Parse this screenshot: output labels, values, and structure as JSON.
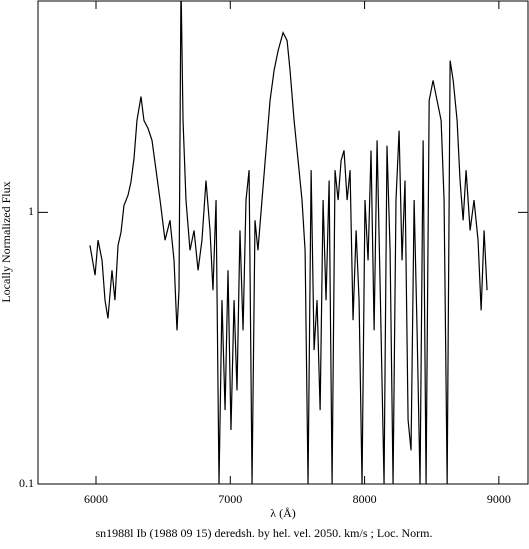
{
  "chart_data": {
    "type": "line",
    "title": "sn1988l Ib (1988 09 15) deredsh. by hel. vel.  2050. km/s ;  Loc. Norm.",
    "xlabel": "λ (Å)",
    "ylabel": "Locally Normalized Flux",
    "color": "#000000",
    "ylog": true,
    "xlim": [
      5568,
      9217
    ],
    "xticks": [
      6000,
      7000,
      8000,
      9000
    ],
    "ylim": [
      0.1,
      6
    ],
    "yticks": [
      0.1,
      1
    ],
    "x": [
      5955,
      5993,
      6015,
      6045,
      6067,
      6089,
      6119,
      6141,
      6164,
      6186,
      6208,
      6238,
      6260,
      6283,
      6305,
      6335,
      6357,
      6387,
      6417,
      6447,
      6477,
      6514,
      6551,
      6581,
      6603,
      6618,
      6633,
      6648,
      6670,
      6700,
      6730,
      6760,
      6789,
      6819,
      6849,
      6871,
      6894,
      6916,
      6938,
      6961,
      6983,
      7005,
      7028,
      7050,
      7072,
      7095,
      7117,
      7140,
      7162,
      7184,
      7206,
      7236,
      7266,
      7296,
      7326,
      7356,
      7393,
      7423,
      7445,
      7475,
      7505,
      7534,
      7557,
      7579,
      7602,
      7624,
      7646,
      7669,
      7691,
      7713,
      7736,
      7758,
      7780,
      7803,
      7825,
      7847,
      7870,
      7892,
      7914,
      7937,
      7959,
      7981,
      8003,
      8026,
      8048,
      8071,
      8093,
      8115,
      8145,
      8167,
      8190,
      8212,
      8234,
      8257,
      8279,
      8301,
      8324,
      8346,
      8369,
      8391,
      8413,
      8436,
      8458,
      8481,
      8510,
      8540,
      8570,
      8592,
      8615,
      8637,
      8660,
      8689,
      8711,
      8734,
      8756,
      8786,
      8815,
      8845,
      8868,
      8890,
      8912
    ],
    "values": [
      0.756,
      0.587,
      0.79,
      0.666,
      0.475,
      0.407,
      0.612,
      0.475,
      0.756,
      0.844,
      1.06,
      1.155,
      1.29,
      1.58,
      2.18,
      2.67,
      2.18,
      2.04,
      1.84,
      1.43,
      1.11,
      0.79,
      0.935,
      0.666,
      0.368,
      0.517,
      7,
      2.18,
      1.11,
      0.725,
      0.858,
      0.612,
      0.79,
      1.31,
      0.858,
      0.517,
      1.11,
      0.1,
      0.475,
      0.187,
      0.612,
      0.158,
      0.475,
      0.221,
      0.858,
      0.368,
      1.11,
      1.43,
      0.1,
      0.935,
      0.725,
      1.11,
      1.69,
      2.58,
      3.33,
      3.94,
      4.59,
      4.29,
      3.33,
      2.18,
      1.55,
      1.11,
      0.725,
      0.1,
      1.43,
      0.311,
      0.475,
      0.187,
      1.11,
      0.475,
      1.31,
      0.1,
      1.43,
      1.11,
      1.55,
      1.69,
      1.11,
      1.43,
      0.401,
      0.858,
      0.475,
      0.1,
      1.11,
      0.666,
      1.69,
      0.368,
      1.84,
      0.562,
      0.1,
      1.76,
      0.725,
      0.1,
      1.11,
      2.0,
      0.666,
      1.31,
      0.172,
      0.133,
      1.11,
      0.368,
      0.1,
      1.84,
      0.1,
      2.58,
      3.06,
      2.58,
      2.18,
      1.11,
      0.1,
      3.62,
      3.06,
      2.18,
      1.31,
      0.935,
      1.43,
      0.858,
      1.11,
      0.79,
      0.436,
      0.858,
      0.517
    ]
  }
}
